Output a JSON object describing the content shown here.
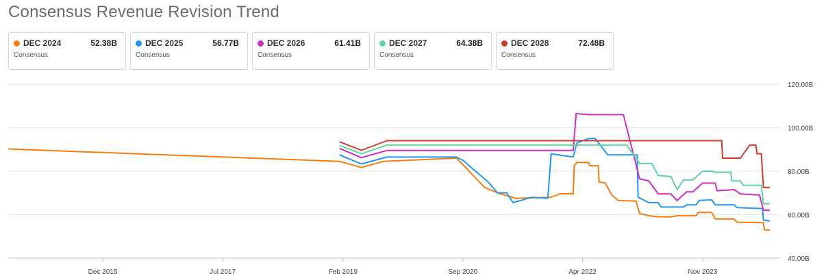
{
  "title": "Consensus Revenue Revision Trend",
  "cards": [
    {
      "name": "DEC 2024",
      "value": "52.38B",
      "sub": "Consensus",
      "color": "#f57c0f"
    },
    {
      "name": "DEC 2025",
      "value": "56.77B",
      "sub": "Consensus",
      "color": "#2196f3"
    },
    {
      "name": "DEC 2026",
      "value": "61.41B",
      "sub": "Consensus",
      "color": "#cc2bc6"
    },
    {
      "name": "DEC 2027",
      "value": "64.38B",
      "sub": "Consensus",
      "color": "#5fd39e"
    },
    {
      "name": "DEC 2028",
      "value": "72.48B",
      "sub": "Consensus",
      "color": "#d03b2c"
    }
  ],
  "chart_data": {
    "type": "line",
    "title": "Consensus Revenue Revision Trend",
    "xlabel": "",
    "ylabel": "",
    "x_tick_labels": [
      "Dec 2015",
      "Jul 2017",
      "Feb 2019",
      "Sep 2020",
      "Apr 2022",
      "Nov 2023"
    ],
    "x_tick_dates": [
      "2015-12-01",
      "2017-07-01",
      "2019-02-01",
      "2020-09-01",
      "2022-04-01",
      "2023-11-01"
    ],
    "x_range": [
      "2014-09-01",
      "2024-09-20"
    ],
    "y_tick_labels": [
      "40.00B",
      "60.00B",
      "80.00B",
      "100.00B",
      "120.00B"
    ],
    "y_ticks": [
      40,
      60,
      80,
      100,
      120
    ],
    "ylim": [
      40,
      120
    ],
    "y_unit": "B",
    "grid": true,
    "series": [
      {
        "name": "DEC 2024",
        "color": "#f57c0f",
        "points": [
          [
            "2014-09-01",
            90.2
          ],
          [
            "2019-01-15",
            84.5
          ],
          [
            "2019-05-01",
            81.7
          ],
          [
            "2019-08-15",
            84.5
          ],
          [
            "2020-08-01",
            86.0
          ],
          [
            "2020-09-01",
            83.0
          ],
          [
            "2020-12-15",
            72.5
          ],
          [
            "2021-03-01",
            69.5
          ],
          [
            "2021-05-15",
            67.5
          ],
          [
            "2021-11-01",
            68.0
          ],
          [
            "2021-12-15",
            69.6
          ],
          [
            "2022-02-15",
            69.6
          ],
          [
            "2022-02-20",
            82.5
          ],
          [
            "2022-03-05",
            84.0
          ],
          [
            "2022-05-01",
            84.0
          ],
          [
            "2022-05-05",
            82.5
          ],
          [
            "2022-06-15",
            82.5
          ],
          [
            "2022-06-20",
            75.0
          ],
          [
            "2022-07-20",
            74.5
          ],
          [
            "2022-08-20",
            69.0
          ],
          [
            "2022-09-20",
            66.5
          ],
          [
            "2022-12-15",
            66.2
          ],
          [
            "2023-01-01",
            60.5
          ],
          [
            "2023-02-15",
            59.5
          ],
          [
            "2023-04-01",
            59.0
          ],
          [
            "2023-06-01",
            59.0
          ],
          [
            "2023-07-01",
            59.5
          ],
          [
            "2023-10-01",
            59.5
          ],
          [
            "2023-10-10",
            61.0
          ],
          [
            "2023-12-15",
            61.0
          ],
          [
            "2024-01-01",
            58.0
          ],
          [
            "2024-04-01",
            58.0
          ],
          [
            "2024-04-15",
            56.5
          ],
          [
            "2024-08-20",
            56.3
          ],
          [
            "2024-08-25",
            53.0
          ],
          [
            "2024-09-20",
            52.9
          ]
        ]
      },
      {
        "name": "DEC 2025",
        "color": "#2196f3",
        "points": [
          [
            "2019-01-15",
            87.5
          ],
          [
            "2019-05-01",
            83.3
          ],
          [
            "2019-09-01",
            86.5
          ],
          [
            "2020-08-01",
            86.5
          ],
          [
            "2020-09-01",
            85.0
          ],
          [
            "2021-01-01",
            75.0
          ],
          [
            "2021-02-15",
            70.0
          ],
          [
            "2021-04-01",
            70.0
          ],
          [
            "2021-05-01",
            65.5
          ],
          [
            "2021-08-01",
            68.0
          ],
          [
            "2021-10-15",
            67.5
          ],
          [
            "2021-11-01",
            88.0
          ],
          [
            "2022-02-15",
            86.5
          ],
          [
            "2022-03-05",
            93.0
          ],
          [
            "2022-05-01",
            95.0
          ],
          [
            "2022-06-01",
            95.0
          ],
          [
            "2022-08-01",
            87.5
          ],
          [
            "2022-12-20",
            87.5
          ],
          [
            "2022-12-25",
            68.0
          ],
          [
            "2023-02-15",
            65.5
          ],
          [
            "2023-04-01",
            65.5
          ],
          [
            "2023-04-15",
            63.5
          ],
          [
            "2023-08-01",
            63.5
          ],
          [
            "2023-08-15",
            64.5
          ],
          [
            "2023-10-01",
            64.5
          ],
          [
            "2023-10-15",
            66.5
          ],
          [
            "2023-12-15",
            66.8
          ],
          [
            "2024-01-01",
            64.5
          ],
          [
            "2024-04-01",
            64.5
          ],
          [
            "2024-04-15",
            63.2
          ],
          [
            "2024-08-15",
            62.8
          ],
          [
            "2024-08-20",
            57.5
          ],
          [
            "2024-09-20",
            57.0
          ]
        ]
      },
      {
        "name": "DEC 2026",
        "color": "#cc2bc6",
        "points": [
          [
            "2019-01-15",
            90.5
          ],
          [
            "2019-05-01",
            86.2
          ],
          [
            "2019-09-01",
            89.5
          ],
          [
            "2022-02-15",
            89.5
          ],
          [
            "2022-03-01",
            106.5
          ],
          [
            "2022-05-01",
            106.0
          ],
          [
            "2022-10-15",
            106.0
          ],
          [
            "2023-01-01",
            76.5
          ],
          [
            "2023-02-15",
            75.5
          ],
          [
            "2023-04-01",
            69.5
          ],
          [
            "2023-06-01",
            69.5
          ],
          [
            "2023-07-01",
            66.5
          ],
          [
            "2023-08-15",
            70.5
          ],
          [
            "2023-09-15",
            70.5
          ],
          [
            "2023-11-01",
            74.5
          ],
          [
            "2024-01-01",
            74.5
          ],
          [
            "2024-01-10",
            71.0
          ],
          [
            "2024-04-01",
            71.5
          ],
          [
            "2024-05-01",
            69.5
          ],
          [
            "2024-08-01",
            69.0
          ],
          [
            "2024-08-20",
            62.0
          ],
          [
            "2024-09-20",
            62.0
          ]
        ]
      },
      {
        "name": "DEC 2027",
        "color": "#5fd39e",
        "points": [
          [
            "2019-01-15",
            91.8
          ],
          [
            "2019-05-01",
            88.0
          ],
          [
            "2019-09-01",
            92.0
          ],
          [
            "2022-11-01",
            92.0
          ],
          [
            "2023-01-01",
            83.5
          ],
          [
            "2023-03-01",
            83.5
          ],
          [
            "2023-04-01",
            78.0
          ],
          [
            "2023-06-01",
            77.5
          ],
          [
            "2023-07-01",
            71.5
          ],
          [
            "2023-08-01",
            76.0
          ],
          [
            "2023-09-15",
            76.0
          ],
          [
            "2023-11-01",
            80.0
          ],
          [
            "2023-12-15",
            80.0
          ],
          [
            "2024-01-01",
            79.5
          ],
          [
            "2024-03-15",
            79.5
          ],
          [
            "2024-03-20",
            75.5
          ],
          [
            "2024-05-01",
            75.5
          ],
          [
            "2024-05-15",
            73.5
          ],
          [
            "2024-08-10",
            73.5
          ],
          [
            "2024-08-20",
            65.0
          ],
          [
            "2024-09-20",
            65.0
          ]
        ]
      },
      {
        "name": "DEC 2028",
        "color": "#d03b2c",
        "points": [
          [
            "2019-01-15",
            93.5
          ],
          [
            "2019-05-01",
            89.6
          ],
          [
            "2019-09-01",
            94.0
          ],
          [
            "2024-02-01",
            94.0
          ],
          [
            "2024-02-05",
            86.0
          ],
          [
            "2024-05-01",
            86.0
          ],
          [
            "2024-06-15",
            92.0
          ],
          [
            "2024-07-15",
            92.0
          ],
          [
            "2024-07-20",
            88.0
          ],
          [
            "2024-08-10",
            88.0
          ],
          [
            "2024-08-20",
            72.5
          ],
          [
            "2024-09-20",
            72.5
          ]
        ]
      }
    ]
  }
}
